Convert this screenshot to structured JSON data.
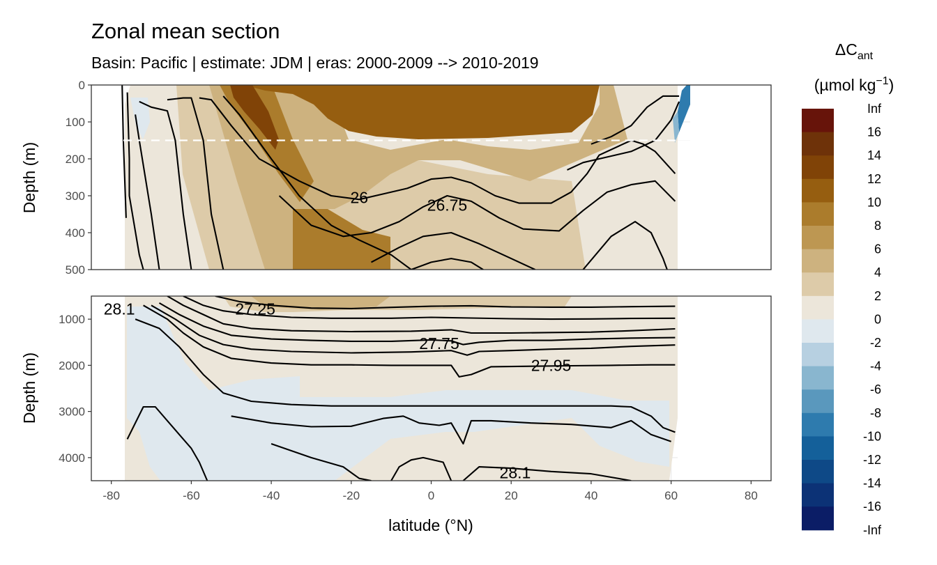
{
  "title": "Zonal mean section",
  "subtitle": "Basin: Pacific | estimate: JDM  | eras: 2000-2009 --> 2010-2019",
  "chart_data": {
    "type": "contour",
    "title": "Zonal mean section",
    "subtitle": "Basin: Pacific | estimate: JDM  | eras: 2000-2009 --> 2010-2019",
    "xlabel": "latitude (°N)",
    "xlim": [
      -85,
      85
    ],
    "xticks": [
      -80,
      -60,
      -40,
      -20,
      0,
      20,
      40,
      60,
      80
    ],
    "panels": [
      {
        "name": "upper",
        "ylabel": "Depth (m)",
        "ylim": [
          0,
          500
        ],
        "yticks": [
          0,
          100,
          200,
          300,
          400,
          500
        ],
        "reversed": true,
        "dashed_reference_depth": 150
      },
      {
        "name": "lower",
        "ylabel": "Depth (m)",
        "ylim": [
          500,
          4500
        ],
        "yticks": [
          1000,
          2000,
          3000,
          4000
        ],
        "reversed": true
      }
    ],
    "legend": {
      "title_main": "ΔC",
      "title_sub": "ant",
      "units_pre": "(µmol kg",
      "units_sup": "−1",
      "units_post": ")",
      "placement": "right",
      "bins": [
        {
          "label": "Inf",
          "color": "#67140a"
        },
        {
          "label": "16",
          "color": "#6e3209"
        },
        {
          "label": "14",
          "color": "#804307"
        },
        {
          "label": "12",
          "color": "#965e10"
        },
        {
          "label": "10",
          "color": "#ab7c2c"
        },
        {
          "label": "8",
          "color": "#bd9752"
        },
        {
          "label": "6",
          "color": "#cdb27f"
        },
        {
          "label": "4",
          "color": "#ddcba9"
        },
        {
          "label": "2",
          "color": "#ece6da"
        },
        {
          "label": "0",
          "color": "#dfe8ee"
        },
        {
          "label": "-2",
          "color": "#b7d0e1"
        },
        {
          "label": "-4",
          "color": "#89b6cf"
        },
        {
          "label": "-6",
          "color": "#5a98bd"
        },
        {
          "label": "-8",
          "color": "#2e7bae"
        },
        {
          "label": "-10",
          "color": "#14609a"
        },
        {
          "label": "-12",
          "color": "#0e4987"
        },
        {
          "label": "-14",
          "color": "#0c3276"
        },
        {
          "label": "-16",
          "color": "#0b1d66"
        },
        {
          "label": "-Inf",
          "color": "#0b1d66"
        }
      ]
    },
    "isopycnal_labels": [
      {
        "text": "26",
        "lat": -18,
        "depth": 305
      },
      {
        "text": "26.75",
        "lat": 4,
        "depth": 325
      },
      {
        "text": "27.25",
        "lat": -44,
        "depth": 780
      },
      {
        "text": "28.1",
        "lat": -78,
        "depth": 780
      },
      {
        "text": "27.75",
        "lat": 2,
        "depth": 1530
      },
      {
        "text": "27.95",
        "lat": 30,
        "depth": 2000
      },
      {
        "text": "28.1",
        "lat": 21,
        "depth": 4330
      }
    ],
    "isopycnals_upper": [
      [
        [
          -77.3,
          0
        ],
        [
          -77,
          150
        ],
        [
          -76.3,
          360
        ]
      ],
      [
        [
          -76,
          20
        ],
        [
          -75.5,
          200
        ],
        [
          -75.5,
          300
        ],
        [
          -73,
          460
        ],
        [
          -72,
          500
        ]
      ],
      [
        [
          -74,
          80
        ],
        [
          -73,
          150
        ],
        [
          -70,
          350
        ],
        [
          -68,
          500
        ]
      ],
      [
        [
          -73,
          45
        ],
        [
          -70,
          60
        ],
        [
          -66,
          70
        ],
        [
          -64,
          150
        ],
        [
          -62,
          350
        ],
        [
          -60,
          500
        ]
      ],
      [
        [
          -66,
          40
        ],
        [
          -62,
          35
        ],
        [
          -60,
          35
        ],
        [
          -57,
          150
        ],
        [
          -55,
          350
        ],
        [
          -52,
          500
        ]
      ],
      [
        [
          -52,
          30
        ],
        [
          -48,
          80
        ],
        [
          -40,
          200
        ],
        [
          -33,
          300
        ],
        [
          -25,
          380
        ],
        [
          -18,
          420
        ],
        [
          -10,
          460
        ],
        [
          -5,
          500
        ]
      ],
      [
        [
          -58,
          35
        ],
        [
          -55,
          40
        ],
        [
          -50,
          110
        ],
        [
          -43,
          200
        ],
        [
          -33,
          260
        ],
        [
          -25,
          300
        ],
        [
          -18,
          310
        ],
        [
          -12,
          295
        ],
        [
          -6,
          280
        ],
        [
          0,
          255
        ],
        [
          5,
          250
        ],
        [
          10,
          265
        ],
        [
          16,
          300
        ],
        [
          22,
          320
        ],
        [
          30,
          320
        ],
        [
          35,
          290
        ],
        [
          39,
          240
        ],
        [
          42,
          190
        ],
        [
          50,
          150
        ],
        [
          53,
          160
        ],
        [
          56,
          180
        ],
        [
          61,
          240
        ]
      ],
      [
        [
          -38,
          300
        ],
        [
          -30,
          380
        ],
        [
          -22,
          410
        ],
        [
          -15,
          400
        ],
        [
          -8,
          370
        ],
        [
          -2,
          330
        ],
        [
          4,
          300
        ],
        [
          10,
          315
        ],
        [
          17,
          360
        ],
        [
          23,
          390
        ],
        [
          32,
          395
        ],
        [
          38,
          340
        ],
        [
          44,
          290
        ],
        [
          50,
          270
        ],
        [
          56,
          260
        ],
        [
          61,
          315
        ]
      ],
      [
        [
          -15,
          480
        ],
        [
          -8,
          440
        ],
        [
          -2,
          410
        ],
        [
          5,
          400
        ],
        [
          12,
          430
        ],
        [
          20,
          470
        ],
        [
          26,
          500
        ]
      ],
      [
        [
          -5,
          500
        ],
        [
          0,
          480
        ],
        [
          5,
          470
        ],
        [
          10,
          480
        ],
        [
          13,
          500
        ]
      ],
      [
        [
          38,
          500
        ],
        [
          45,
          410
        ],
        [
          51,
          370
        ],
        [
          55,
          400
        ],
        [
          58,
          470
        ],
        [
          59,
          500
        ]
      ],
      [
        [
          62,
          45
        ],
        [
          60,
          95
        ],
        [
          56,
          150
        ],
        [
          50,
          180
        ],
        [
          44,
          195
        ],
        [
          38,
          210
        ],
        [
          34,
          230
        ]
      ],
      [
        [
          62,
          30
        ],
        [
          58,
          30
        ],
        [
          54,
          60
        ],
        [
          50,
          110
        ],
        [
          45,
          140
        ],
        [
          40,
          160
        ]
      ]
    ],
    "isopycnals_lower": [
      [
        [
          -54,
          500
        ],
        [
          -48,
          620
        ],
        [
          -40,
          700
        ],
        [
          -30,
          760
        ],
        [
          -20,
          770
        ],
        [
          -10,
          745
        ],
        [
          0,
          720
        ],
        [
          10,
          710
        ],
        [
          20,
          735
        ],
        [
          30,
          740
        ],
        [
          40,
          740
        ],
        [
          50,
          730
        ],
        [
          61,
          720
        ]
      ],
      [
        [
          -62,
          500
        ],
        [
          -57,
          700
        ],
        [
          -52,
          820
        ],
        [
          -45,
          900
        ],
        [
          -35,
          960
        ],
        [
          -25,
          980
        ],
        [
          -10,
          980
        ],
        [
          0,
          960
        ],
        [
          10,
          975
        ],
        [
          20,
          990
        ],
        [
          30,
          1000
        ],
        [
          40,
          995
        ],
        [
          50,
          985
        ],
        [
          61,
          980
        ]
      ],
      [
        [
          -66,
          500
        ],
        [
          -62,
          700
        ],
        [
          -57,
          900
        ],
        [
          -52,
          1100
        ],
        [
          -45,
          1200
        ],
        [
          -35,
          1250
        ],
        [
          -20,
          1270
        ],
        [
          -5,
          1260
        ],
        [
          5,
          1230
        ],
        [
          10,
          1300
        ],
        [
          20,
          1300
        ],
        [
          30,
          1290
        ],
        [
          40,
          1280
        ],
        [
          50,
          1250
        ],
        [
          61,
          1210
        ]
      ],
      [
        [
          -68,
          650
        ],
        [
          -63,
          900
        ],
        [
          -57,
          1150
        ],
        [
          -50,
          1350
        ],
        [
          -40,
          1430
        ],
        [
          -30,
          1460
        ],
        [
          -20,
          1480
        ],
        [
          -10,
          1480
        ],
        [
          0,
          1450
        ],
        [
          5,
          1470
        ],
        [
          8,
          1550
        ],
        [
          12,
          1500
        ],
        [
          20,
          1460
        ],
        [
          30,
          1460
        ],
        [
          40,
          1430
        ],
        [
          50,
          1410
        ],
        [
          61,
          1400
        ]
      ],
      [
        [
          -70,
          700
        ],
        [
          -64,
          1000
        ],
        [
          -58,
          1350
        ],
        [
          -52,
          1550
        ],
        [
          -45,
          1650
        ],
        [
          -35,
          1700
        ],
        [
          -20,
          1730
        ],
        [
          -5,
          1710
        ],
        [
          5,
          1680
        ],
        [
          9,
          1780
        ],
        [
          12,
          1700
        ],
        [
          20,
          1680
        ],
        [
          30,
          1650
        ],
        [
          40,
          1630
        ],
        [
          50,
          1590
        ],
        [
          61,
          1560
        ]
      ],
      [
        [
          -72,
          700
        ],
        [
          -66,
          1000
        ],
        [
          -62,
          1300
        ],
        [
          -57,
          1600
        ],
        [
          -50,
          1850
        ],
        [
          -40,
          1950
        ],
        [
          -30,
          1990
        ],
        [
          -20,
          1990
        ],
        [
          -10,
          2000
        ],
        [
          0,
          2000
        ],
        [
          5,
          2000
        ],
        [
          7,
          2250
        ],
        [
          10,
          2200
        ],
        [
          15,
          2030
        ],
        [
          25,
          2020
        ],
        [
          35,
          2010
        ],
        [
          45,
          2000
        ],
        [
          55,
          1990
        ],
        [
          61,
          1990
        ]
      ],
      [
        [
          -74,
          1000
        ],
        [
          -68,
          1200
        ],
        [
          -63,
          1600
        ],
        [
          -57,
          2200
        ],
        [
          -52,
          2600
        ],
        [
          -45,
          2780
        ],
        [
          -35,
          2850
        ],
        [
          -25,
          2880
        ],
        [
          -15,
          2880
        ],
        [
          -5,
          2880
        ],
        [
          5,
          2880
        ],
        [
          15,
          2880
        ],
        [
          25,
          2880
        ],
        [
          35,
          2880
        ],
        [
          45,
          2880
        ],
        [
          50,
          2900
        ],
        [
          55,
          3100
        ],
        [
          58,
          3350
        ],
        [
          61,
          3450
        ]
      ],
      [
        [
          -76,
          3600
        ],
        [
          -72,
          2900
        ],
        [
          -69,
          2900
        ],
        [
          -66,
          3200
        ],
        [
          -63,
          3500
        ],
        [
          -60,
          3800
        ],
        [
          -58,
          4100
        ],
        [
          -56,
          4500
        ]
      ],
      [
        [
          -50,
          3100
        ],
        [
          -40,
          3250
        ],
        [
          -30,
          3330
        ],
        [
          -20,
          3320
        ],
        [
          -12,
          3150
        ],
        [
          -7,
          3100
        ],
        [
          -3,
          3250
        ],
        [
          2,
          3300
        ],
        [
          5,
          3250
        ],
        [
          8,
          3700
        ],
        [
          10,
          3200
        ],
        [
          15,
          3200
        ],
        [
          25,
          3250
        ],
        [
          35,
          3280
        ],
        [
          45,
          3350
        ],
        [
          50,
          3200
        ],
        [
          55,
          3500
        ],
        [
          60,
          3650
        ]
      ],
      [
        [
          -40,
          3700
        ],
        [
          -30,
          4000
        ],
        [
          -22,
          4200
        ],
        [
          -18,
          4450
        ],
        [
          -15,
          4500
        ]
      ],
      [
        [
          -10,
          4500
        ],
        [
          -8,
          4200
        ],
        [
          -5,
          4050
        ],
        [
          -2,
          4000
        ],
        [
          3,
          4100
        ],
        [
          5,
          4500
        ]
      ],
      [
        [
          8,
          4500
        ],
        [
          12,
          4200
        ],
        [
          20,
          4230
        ],
        [
          30,
          4300
        ],
        [
          40,
          4350
        ],
        [
          50,
          4500
        ]
      ]
    ]
  }
}
